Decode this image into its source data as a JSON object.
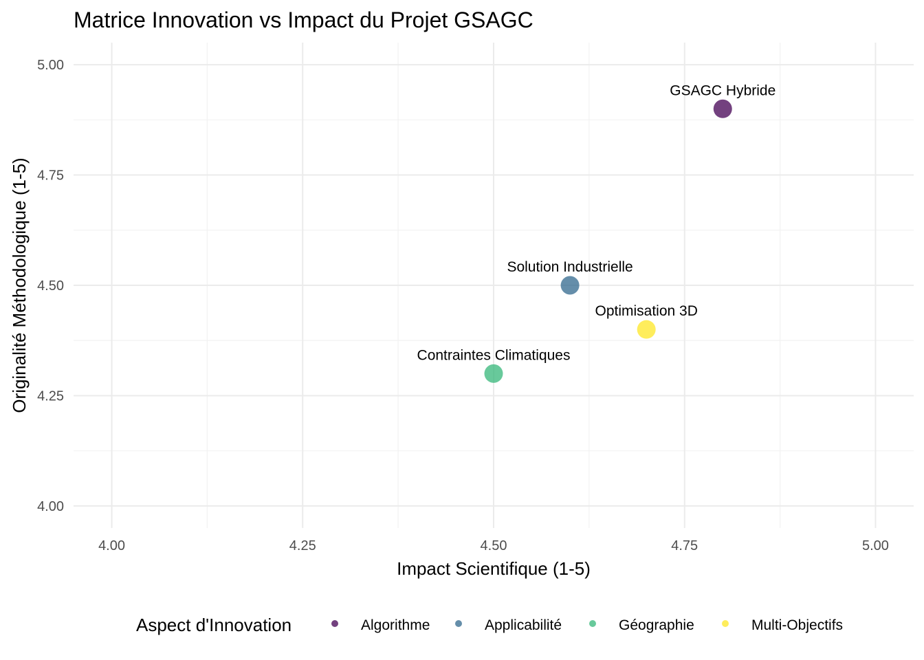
{
  "chart_data": {
    "type": "scatter",
    "title": "Matrice Innovation vs Impact du Projet GSAGC",
    "xlabel": "Impact Scientifique (1-5)",
    "ylabel": "Originalité Méthodologique (1-5)",
    "xlim": [
      3.95,
      5.05
    ],
    "ylim": [
      3.95,
      5.05
    ],
    "x_ticks": [
      "4.00",
      "4.25",
      "4.50",
      "4.75",
      "5.00"
    ],
    "y_ticks": [
      "4.00",
      "4.25",
      "4.50",
      "4.75",
      "5.00"
    ],
    "grid": true,
    "legend": {
      "title": "Aspect d'Innovation",
      "position": "bottom",
      "entries": [
        {
          "name": "Algorithme",
          "color": "#440154"
        },
        {
          "name": "Applicabilité",
          "color": "#31688e"
        },
        {
          "name": "Géographie",
          "color": "#35b779"
        },
        {
          "name": "Multi-Objectifs",
          "color": "#fde725"
        }
      ]
    },
    "points": [
      {
        "label": "GSAGC Hybride",
        "x": 4.8,
        "y": 4.9,
        "group": "Algorithme",
        "color": "#440154"
      },
      {
        "label": "Solution Industrielle",
        "x": 4.6,
        "y": 4.5,
        "group": "Applicabilité",
        "color": "#31688e"
      },
      {
        "label": "Optimisation 3D",
        "x": 4.7,
        "y": 4.4,
        "group": "Multi-Objectifs",
        "color": "#fde725"
      },
      {
        "label": "Contraintes Climatiques",
        "x": 4.5,
        "y": 4.3,
        "group": "Géographie",
        "color": "#35b779"
      }
    ]
  }
}
